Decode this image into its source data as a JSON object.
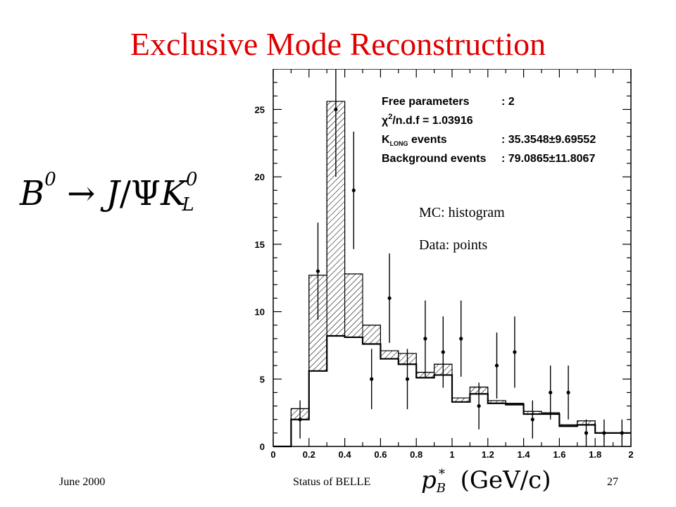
{
  "slide": {
    "title": "Exclusive Mode Reconstruction",
    "footer_left": "June 2000",
    "footer_center": "Status of BELLE",
    "footer_right": "27"
  },
  "formula": {
    "B": "B",
    "B_sup": "0",
    "arrow": "→",
    "J": "J",
    "slash": "/",
    "Psi": "Ψ",
    "K": "K",
    "K_sup": "0",
    "K_sub": "L"
  },
  "xlabel": {
    "p": "p",
    "sub": "B",
    "sup": "*",
    "units": "(GeV/c)"
  },
  "chart_data": {
    "type": "bar",
    "title": "",
    "xlim": [
      0,
      2
    ],
    "ylim": [
      0,
      28
    ],
    "x_ticks": [
      "0",
      "0.2",
      "0.4",
      "0.6",
      "0.8",
      "1",
      "1.2",
      "1.4",
      "1.6",
      "1.8",
      "2"
    ],
    "y_ticks": [
      "0",
      "5",
      "10",
      "15",
      "20",
      "25"
    ],
    "bin_edges": [
      0,
      0.1,
      0.2,
      0.3,
      0.4,
      0.5,
      0.6,
      0.7,
      0.8,
      0.9,
      1.0,
      1.1,
      1.2,
      1.3,
      1.4,
      1.5,
      1.6,
      1.7,
      1.8,
      1.9,
      2.0
    ],
    "series": [
      {
        "name": "MC: histogram",
        "kind": "background",
        "values": [
          0,
          2.0,
          5.6,
          8.2,
          8.1,
          7.6,
          6.5,
          6.1,
          5.1,
          5.3,
          3.3,
          3.9,
          3.2,
          3.1,
          2.4,
          2.4,
          1.5,
          1.6,
          1.0,
          1.0
        ]
      },
      {
        "name": "MC: histogram",
        "kind": "total",
        "values": [
          0,
          2.8,
          12.7,
          25.6,
          12.8,
          9.0,
          7.1,
          6.9,
          5.5,
          6.1,
          3.6,
          4.4,
          3.4,
          3.2,
          2.6,
          2.5,
          1.6,
          1.9,
          1.0,
          1.0
        ]
      },
      {
        "name": "Data: points",
        "kind": "data",
        "x": [
          0.15,
          0.25,
          0.35,
          0.45,
          0.55,
          0.65,
          0.75,
          0.85,
          0.95,
          1.05,
          1.15,
          1.25,
          1.35,
          1.45,
          1.55,
          1.65,
          1.75,
          1.85,
          1.95
        ],
        "values": [
          2,
          13,
          25,
          19,
          5,
          11,
          5,
          8,
          7,
          8,
          3,
          6,
          7,
          2,
          4,
          4,
          1,
          1,
          1
        ]
      }
    ],
    "legend_box": [
      {
        "label": "Free parameters",
        "value": ": 2"
      },
      {
        "label": "χ²/n.d.f = 1.03916",
        "value": ""
      },
      {
        "label": "K_LONG events",
        "value": ": 35.3548±9.69552"
      },
      {
        "label": "Background events",
        "value": ": 79.0865±11.8067"
      }
    ],
    "annotations": [
      "MC: histogram",
      "Data: points"
    ],
    "grid": false
  }
}
